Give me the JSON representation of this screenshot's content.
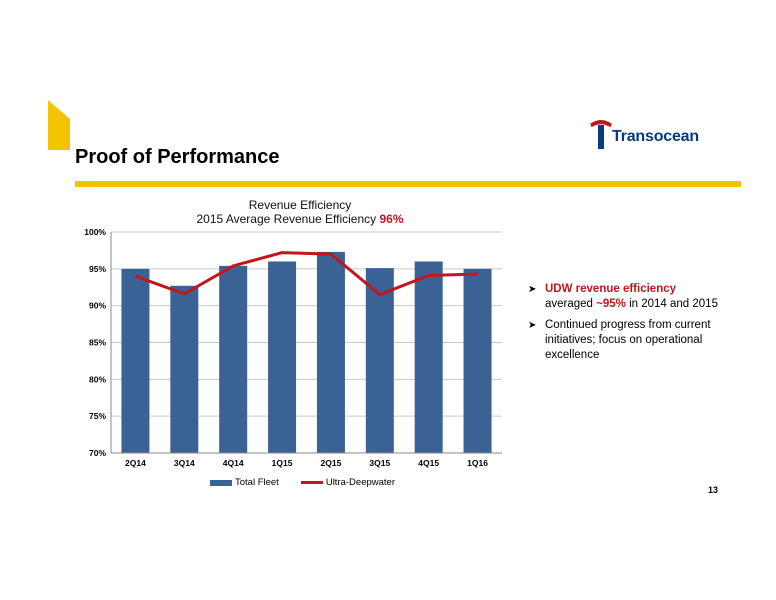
{
  "slide": {
    "title": "Proof of Performance",
    "page_number": "13"
  },
  "logo": {
    "text": "Transocean"
  },
  "colors": {
    "accent_yellow": "#f5c400",
    "bar_blue": "#3a6295",
    "line_red": "#c0161c",
    "brand_navy": "#0a3a7a"
  },
  "chart_data": {
    "type": "bar",
    "title": "Revenue Efficiency",
    "subtitle_prefix": "2015 Average Revenue Efficiency ",
    "subtitle_highlight": "96%",
    "categories": [
      "2Q14",
      "3Q14",
      "4Q14",
      "1Q15",
      "2Q15",
      "3Q15",
      "4Q15",
      "1Q16"
    ],
    "series": [
      {
        "name": "Total Fleet",
        "type": "bar",
        "values": [
          95.0,
          92.7,
          95.4,
          96.0,
          97.3,
          95.1,
          96.0,
          95.0
        ]
      },
      {
        "name": "Ultra-Deepwater",
        "type": "line",
        "values": [
          94.0,
          91.6,
          95.4,
          97.2,
          97.0,
          91.5,
          94.1,
          94.3
        ]
      }
    ],
    "ylim": [
      70,
      100
    ],
    "yticks": [
      70,
      75,
      80,
      85,
      90,
      95,
      100
    ],
    "ytick_labels": [
      "70%",
      "75%",
      "80%",
      "85%",
      "90%",
      "95%",
      "100%"
    ],
    "grid": true,
    "legend": "bottom"
  },
  "bullets": [
    {
      "lead": "UDW revenue efficiency",
      "text_pre": "averaged ",
      "highlight": "~95%",
      "text_post": " in 2014 and 2015"
    },
    {
      "text": "Continued progress from current initiatives; focus on operational excellence"
    }
  ]
}
